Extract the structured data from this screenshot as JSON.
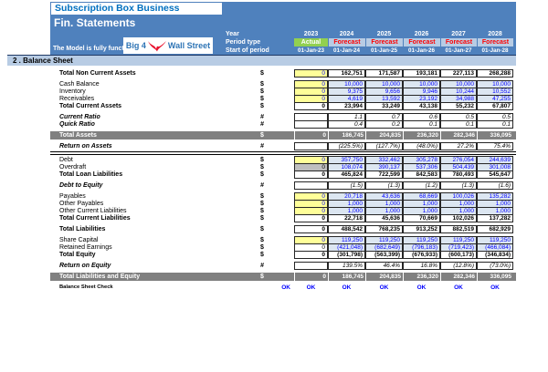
{
  "window": {
    "title": "Subscription Box Business",
    "subtitle": "Fin. Statements",
    "model_status": "The Model is fully functional"
  },
  "logo": {
    "text_left": "Big 4",
    "text_right": "Wall Street",
    "icon": "eagle-icon"
  },
  "period_header": {
    "year_label": "Year",
    "period_type_label": "Period type",
    "start_label": "Start of period",
    "years": [
      "2023",
      "2024",
      "2025",
      "2026",
      "2027",
      "2028"
    ],
    "period_types": [
      "Actual",
      "Forecast",
      "Forecast",
      "Forecast",
      "Forecast",
      "Forecast"
    ],
    "start_dates": [
      "01-Jan-23",
      "01-Jan-24",
      "01-Jan-25",
      "01-Jan-26",
      "01-Jan-27",
      "01-Jan-28"
    ]
  },
  "section_title": "2 . Balance Sheet",
  "colors": {
    "header_blue": "#4f81bd",
    "section_light_blue": "#b8cce4",
    "input_yellow": "#ffff99",
    "calc_cell_blue": "#dce6f1",
    "value_text_blue": "#0000ff",
    "forecast_red": "#ff0000",
    "actual_green": "#92d050",
    "grand_total_gray": "#808080",
    "gray_input": "#bfbfbf",
    "title_blue": "#0070c0",
    "logo_red": "#e8112d",
    "ok_blue": "#0000ff"
  },
  "balance_sheet": {
    "flow": [
      {
        "t": "row",
        "label": "Total Non Current Assets",
        "unit": "$",
        "lstyle": "total",
        "cells": [
          [
            "y",
            "0"
          ],
          [
            "t",
            "162,751"
          ],
          [
            "t",
            "171,587"
          ],
          [
            "t",
            "193,181"
          ],
          [
            "t",
            "227,113"
          ],
          [
            "t",
            "268,288"
          ]
        ]
      },
      {
        "t": "sp"
      },
      {
        "t": "row",
        "label": "Cash Balance",
        "unit": "$",
        "lstyle": "item",
        "cells": [
          [
            "y",
            "0"
          ],
          [
            "c",
            "10,000"
          ],
          [
            "c",
            "10,000"
          ],
          [
            "c",
            "10,000"
          ],
          [
            "c",
            "10,000"
          ],
          [
            "c",
            "10,000"
          ]
        ]
      },
      {
        "t": "row",
        "label": "Inventory",
        "unit": "$",
        "lstyle": "item",
        "cells": [
          [
            "y",
            "0"
          ],
          [
            "c",
            "9,375"
          ],
          [
            "c",
            "9,656"
          ],
          [
            "c",
            "9,946"
          ],
          [
            "c",
            "10,244"
          ],
          [
            "c",
            "10,552"
          ]
        ]
      },
      {
        "t": "row",
        "label": "Receivables",
        "unit": "$",
        "lstyle": "item",
        "cells": [
          [
            "y",
            "0"
          ],
          [
            "c",
            "4,619"
          ],
          [
            "c",
            "13,592"
          ],
          [
            "c",
            "23,192"
          ],
          [
            "c",
            "34,988"
          ],
          [
            "c",
            "47,255"
          ]
        ]
      },
      {
        "t": "row",
        "label": "Total Current Assets",
        "unit": "$",
        "lstyle": "total",
        "cells": [
          [
            "t",
            "0"
          ],
          [
            "t",
            "23,994"
          ],
          [
            "t",
            "33,249"
          ],
          [
            "t",
            "43,138"
          ],
          [
            "t",
            "55,232"
          ],
          [
            "t",
            "67,807"
          ]
        ]
      },
      {
        "t": "sp"
      },
      {
        "t": "row",
        "label": "Current Ratio",
        "unit": "#",
        "lstyle": "italic",
        "cells": [
          [
            "b",
            ""
          ],
          [
            "r",
            "1.1"
          ],
          [
            "r",
            "0.7"
          ],
          [
            "r",
            "0.6"
          ],
          [
            "r",
            "0.5"
          ],
          [
            "r",
            "0.5"
          ]
        ]
      },
      {
        "t": "row",
        "label": "Quick Ratio",
        "unit": "#",
        "lstyle": "italic",
        "cells": [
          [
            "b",
            ""
          ],
          [
            "r",
            "0.4"
          ],
          [
            "r",
            "0.2"
          ],
          [
            "r",
            "0.1"
          ],
          [
            "r",
            "0.1"
          ],
          [
            "r",
            "0.1"
          ]
        ]
      },
      {
        "t": "sp"
      },
      {
        "t": "row",
        "label": "Total Assets",
        "unit": "$",
        "lstyle": "grand",
        "cells": [
          [
            "d",
            "0"
          ],
          [
            "d",
            "186,745"
          ],
          [
            "d",
            "204,835"
          ],
          [
            "d",
            "236,320"
          ],
          [
            "d",
            "282,346"
          ],
          [
            "d",
            "336,095"
          ]
        ]
      },
      {
        "t": "sp"
      },
      {
        "t": "row",
        "label": "Return on Assets",
        "unit": "#",
        "lstyle": "italic",
        "cells": [
          [
            "b",
            ""
          ],
          [
            "r",
            "(225.5%)"
          ],
          [
            "r",
            "(127.7%)"
          ],
          [
            "r",
            "(48.0%)"
          ],
          [
            "r",
            "27.2%"
          ],
          [
            "r",
            "75.4%"
          ]
        ]
      },
      {
        "t": "div"
      },
      {
        "t": "row",
        "label": "Debt",
        "unit": "$",
        "lstyle": "item",
        "cells": [
          [
            "y",
            "0"
          ],
          [
            "c",
            "357,750"
          ],
          [
            "c",
            "332,462"
          ],
          [
            "c",
            "305,278"
          ],
          [
            "c",
            "276,054"
          ],
          [
            "c",
            "244,639"
          ]
        ]
      },
      {
        "t": "row",
        "label": "Overdraft",
        "unit": "$",
        "lstyle": "item",
        "cells": [
          [
            "g",
            "0"
          ],
          [
            "c",
            "108,074"
          ],
          [
            "c",
            "390,137"
          ],
          [
            "c",
            "537,306"
          ],
          [
            "c",
            "504,439"
          ],
          [
            "c",
            "301,008"
          ]
        ]
      },
      {
        "t": "row",
        "label": "Total Loan Liabilities",
        "unit": "$",
        "lstyle": "total",
        "cells": [
          [
            "t",
            "0"
          ],
          [
            "t",
            "465,824"
          ],
          [
            "t",
            "722,599"
          ],
          [
            "t",
            "842,583"
          ],
          [
            "t",
            "780,493"
          ],
          [
            "t",
            "545,647"
          ]
        ]
      },
      {
        "t": "sp"
      },
      {
        "t": "row",
        "label": "Debt to Equity",
        "unit": "#",
        "lstyle": "italic",
        "cells": [
          [
            "b",
            ""
          ],
          [
            "r",
            "(1.5)"
          ],
          [
            "r",
            "(1.3)"
          ],
          [
            "r",
            "(1.2)"
          ],
          [
            "r",
            "(1.3)"
          ],
          [
            "r",
            "(1.6)"
          ]
        ]
      },
      {
        "t": "sp"
      },
      {
        "t": "row",
        "label": "Payables",
        "unit": "$",
        "lstyle": "item",
        "cells": [
          [
            "y",
            "0"
          ],
          [
            "c",
            "20,718"
          ],
          [
            "c",
            "43,636"
          ],
          [
            "c",
            "68,669"
          ],
          [
            "c",
            "100,026"
          ],
          [
            "c",
            "135,282"
          ]
        ]
      },
      {
        "t": "row",
        "label": "Other Payables",
        "unit": "$",
        "lstyle": "item",
        "cells": [
          [
            "y",
            "0"
          ],
          [
            "c",
            "1,000"
          ],
          [
            "c",
            "1,000"
          ],
          [
            "c",
            "1,000"
          ],
          [
            "c",
            "1,000"
          ],
          [
            "c",
            "1,000"
          ]
        ]
      },
      {
        "t": "row",
        "label": "Other Current Liabilities",
        "unit": "$",
        "lstyle": "item",
        "cells": [
          [
            "y",
            "0"
          ],
          [
            "c",
            "1,000"
          ],
          [
            "c",
            "1,000"
          ],
          [
            "c",
            "1,000"
          ],
          [
            "c",
            "1,000"
          ],
          [
            "c",
            "1,000"
          ]
        ]
      },
      {
        "t": "row",
        "label": "Total Current Liabilities",
        "unit": "$",
        "lstyle": "total",
        "cells": [
          [
            "t",
            "0"
          ],
          [
            "t",
            "22,718"
          ],
          [
            "t",
            "45,636"
          ],
          [
            "t",
            "70,669"
          ],
          [
            "t",
            "102,026"
          ],
          [
            "t",
            "137,282"
          ]
        ]
      },
      {
        "t": "sp"
      },
      {
        "t": "row",
        "label": "Total Liabilities",
        "unit": "$",
        "lstyle": "total",
        "cells": [
          [
            "t",
            "0"
          ],
          [
            "t",
            "488,542"
          ],
          [
            "t",
            "768,235"
          ],
          [
            "t",
            "913,252"
          ],
          [
            "t",
            "882,519"
          ],
          [
            "t",
            "682,929"
          ]
        ]
      },
      {
        "t": "sp"
      },
      {
        "t": "row",
        "label": "Share Capital",
        "unit": "$",
        "lstyle": "item",
        "cells": [
          [
            "y",
            "0"
          ],
          [
            "c",
            "119,250"
          ],
          [
            "c",
            "119,250"
          ],
          [
            "c",
            "119,250"
          ],
          [
            "c",
            "119,250"
          ],
          [
            "c",
            "119,250"
          ]
        ]
      },
      {
        "t": "row",
        "label": "Retained Earnings",
        "unit": "$",
        "lstyle": "item",
        "cells": [
          [
            "w",
            "0"
          ],
          [
            "c",
            "(421,048)"
          ],
          [
            "c",
            "(682,649)"
          ],
          [
            "c",
            "(796,183)"
          ],
          [
            "c",
            "(719,423)"
          ],
          [
            "c",
            "(466,084)"
          ]
        ]
      },
      {
        "t": "row",
        "label": "Total Equity",
        "unit": "$",
        "lstyle": "total",
        "cells": [
          [
            "t",
            "0"
          ],
          [
            "t",
            "(301,798)"
          ],
          [
            "t",
            "(563,399)"
          ],
          [
            "t",
            "(676,933)"
          ],
          [
            "t",
            "(600,173)"
          ],
          [
            "t",
            "(346,834)"
          ]
        ]
      },
      {
        "t": "sp"
      },
      {
        "t": "row",
        "label": "Return on Equity",
        "unit": "#",
        "lstyle": "italic",
        "cells": [
          [
            "b",
            ""
          ],
          [
            "r",
            "139.5%"
          ],
          [
            "r",
            "46.4%"
          ],
          [
            "r",
            "16.8%"
          ],
          [
            "r",
            "(12.8%)"
          ],
          [
            "r",
            "(73.0%)"
          ]
        ]
      },
      {
        "t": "sp"
      },
      {
        "t": "row",
        "label": "Total Liabilities and Equity",
        "unit": "$",
        "lstyle": "grand",
        "cells": [
          [
            "d",
            "0"
          ],
          [
            "d",
            "186,745"
          ],
          [
            "d",
            "204,835"
          ],
          [
            "d",
            "236,320"
          ],
          [
            "d",
            "282,346"
          ],
          [
            "d",
            "336,095"
          ]
        ]
      },
      {
        "t": "sp"
      },
      {
        "t": "check"
      }
    ]
  },
  "check": {
    "label": "Balance Sheet Check",
    "values": [
      "OK",
      "OK",
      "OK",
      "OK",
      "OK",
      "OK",
      "OK"
    ]
  }
}
